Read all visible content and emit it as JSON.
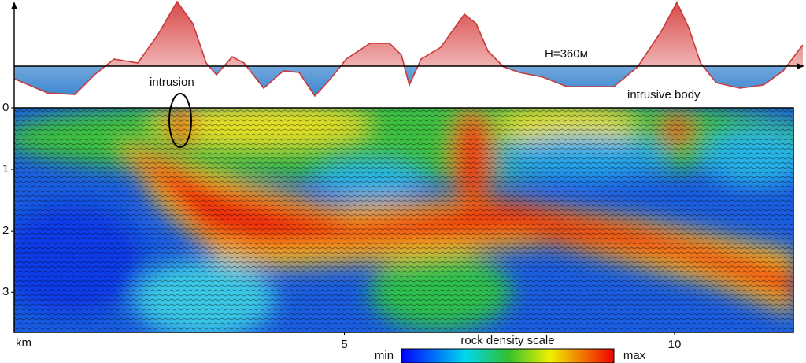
{
  "profile": {
    "label": "H=360м"
  },
  "section": {
    "ylim": [
      0,
      3.65
    ],
    "yticks": [
      0,
      1,
      2,
      3
    ],
    "xlim": [
      0,
      11.8
    ],
    "xticks": [
      5,
      10
    ],
    "x_unit": "km"
  },
  "annotations": [
    "intrusion",
    "intrusive body"
  ],
  "colorbar": {
    "title": "rock density scale",
    "min_label": "min",
    "max_label": "max"
  }
}
